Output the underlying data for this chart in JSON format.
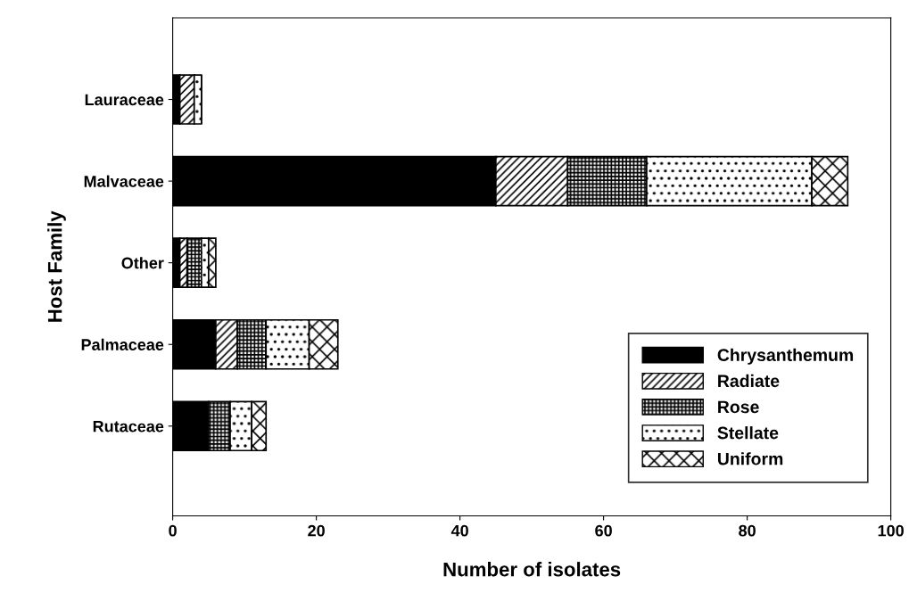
{
  "chart_data": {
    "type": "bar",
    "orientation": "horizontal",
    "stacked": true,
    "xlabel": "Number of isolates",
    "ylabel": "Host Family",
    "categories": [
      "Lauraceae",
      "Malvaceae",
      "Other",
      "Palmaceae",
      "Rutaceae"
    ],
    "series": [
      {
        "name": "Chrysanthemum",
        "color": "#000000",
        "values": [
          1,
          45,
          1,
          6,
          5
        ]
      },
      {
        "name": "Radiate",
        "color": "#000000",
        "values": [
          2,
          10,
          1,
          3,
          0
        ]
      },
      {
        "name": "Rose",
        "color": "#000000",
        "values": [
          0,
          11,
          2,
          4,
          3
        ]
      },
      {
        "name": "Stellate",
        "color": "#000000",
        "values": [
          1,
          23,
          1,
          6,
          3
        ]
      },
      {
        "name": "Uniform",
        "color": "#000000",
        "values": [
          0,
          5,
          1,
          4,
          2
        ]
      }
    ],
    "xlim": [
      0,
      100
    ],
    "xticks": [
      0,
      20,
      40,
      60,
      80,
      100
    ],
    "grid": false,
    "legend": "bottom right"
  }
}
